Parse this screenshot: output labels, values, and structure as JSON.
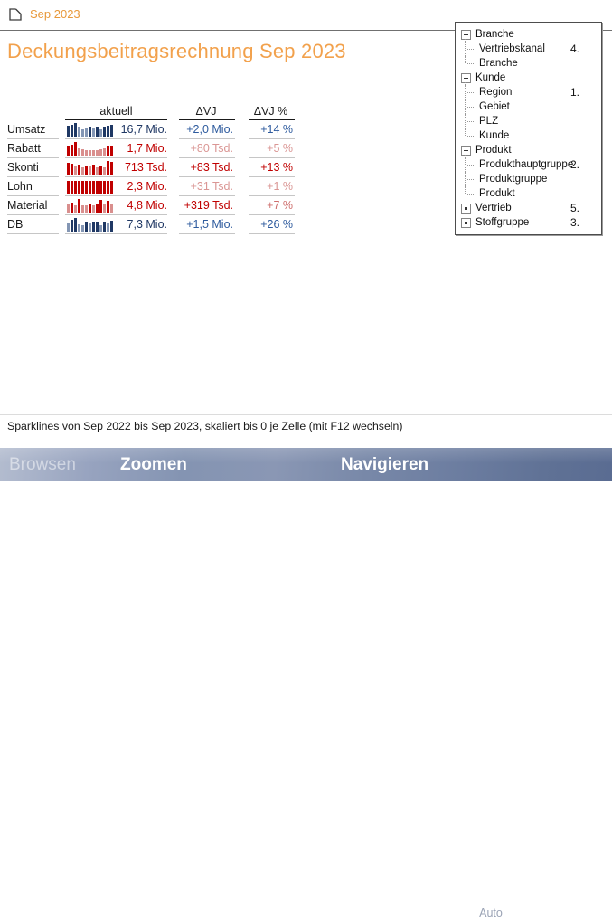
{
  "header": {
    "breadcrumb": "Sep 2023",
    "title": "Deckungsbeitragsrechnung Sep 2023"
  },
  "table": {
    "columns": [
      "aktuell",
      "ΔVJ",
      "ΔVJ %"
    ],
    "rows": [
      {
        "label": "Umsatz",
        "aktuell": "16,7 Mio.",
        "dvj": "+2,0 Mio.",
        "dvjp": "+14 %",
        "colors": {
          "aktuell": "#203864",
          "dvj": "#2E5B9E",
          "dvjp": "#2E5B9E"
        },
        "spark": {
          "dark": "#1F3864",
          "light": "#8496B4",
          "values": [
            0.8,
            0.87,
            1.0,
            0.7,
            0.5,
            0.65,
            0.75,
            0.68,
            0.75,
            0.55,
            0.7,
            0.8,
            0.87
          ],
          "tones": [
            "d",
            "d",
            "d",
            "l",
            "l",
            "l",
            "d",
            "l",
            "d",
            "l",
            "d",
            "d",
            "d"
          ]
        }
      },
      {
        "label": "Rabatt",
        "aktuell": "1,7 Mio.",
        "dvj": "+80 Tsd.",
        "dvjp": "+5 %",
        "colors": {
          "aktuell": "#C00000",
          "dvj": "#DA9694",
          "dvjp": "#DA9694"
        },
        "spark": {
          "dark": "#C00000",
          "light": "#D98F8E",
          "values": [
            0.7,
            0.82,
            1.0,
            0.55,
            0.45,
            0.42,
            0.42,
            0.42,
            0.42,
            0.45,
            0.5,
            0.75,
            0.7
          ],
          "tones": [
            "d",
            "d",
            "d",
            "l",
            "l",
            "l",
            "l",
            "l",
            "l",
            "l",
            "l",
            "d",
            "d"
          ]
        }
      },
      {
        "label": "Skonti",
        "aktuell": "713 Tsd.",
        "dvj": "+83 Tsd.",
        "dvjp": "+13 %",
        "colors": {
          "aktuell": "#C00000",
          "dvj": "#C00000",
          "dvjp": "#C00000"
        },
        "spark": {
          "dark": "#C00000",
          "light": "#D98F8E",
          "values": [
            0.85,
            0.78,
            0.6,
            0.74,
            0.55,
            0.68,
            0.6,
            0.73,
            0.55,
            0.68,
            0.5,
            1.0,
            0.93
          ],
          "tones": [
            "d",
            "d",
            "l",
            "d",
            "l",
            "d",
            "l",
            "d",
            "l",
            "d",
            "l",
            "d",
            "d"
          ]
        }
      },
      {
        "label": "Lohn",
        "aktuell": "2,3 Mio.",
        "dvj": "+31 Tsd.",
        "dvjp": "+1 %",
        "colors": {
          "aktuell": "#C00000",
          "dvj": "#DA9694",
          "dvjp": "#DA9694"
        },
        "spark": {
          "dark": "#C00000",
          "light": "#D98F8E",
          "values": [
            0.96,
            0.93,
            0.95,
            0.94,
            0.96,
            0.93,
            0.95,
            0.94,
            0.96,
            0.93,
            0.95,
            0.94,
            0.96
          ],
          "tones": [
            "d",
            "d",
            "d",
            "d",
            "d",
            "d",
            "d",
            "d",
            "d",
            "d",
            "d",
            "d",
            "d"
          ]
        }
      },
      {
        "label": "Material",
        "aktuell": "4,8 Mio.",
        "dvj": "+319 Tsd.",
        "dvjp": "+7 %",
        "colors": {
          "aktuell": "#C00000",
          "dvj": "#C00000",
          "dvjp": "#CE6E6C"
        },
        "spark": {
          "dark": "#C00000",
          "light": "#D98F8E",
          "values": [
            0.6,
            0.7,
            0.55,
            1.0,
            0.5,
            0.55,
            0.62,
            0.55,
            0.65,
            0.9,
            0.6,
            0.85,
            0.65
          ],
          "tones": [
            "l",
            "d",
            "l",
            "d",
            "l",
            "l",
            "d",
            "l",
            "d",
            "d",
            "l",
            "d",
            "l"
          ]
        }
      },
      {
        "label": "DB",
        "aktuell": "7,3 Mio.",
        "dvj": "+1,5 Mio.",
        "dvjp": "+26 %",
        "colors": {
          "aktuell": "#203864",
          "dvj": "#2E5B9E",
          "dvjp": "#2E5B9E"
        },
        "spark": {
          "dark": "#1F3864",
          "light": "#8496B4",
          "values": [
            0.65,
            0.85,
            1.0,
            0.55,
            0.45,
            0.7,
            0.6,
            0.75,
            0.7,
            0.45,
            0.75,
            0.6,
            0.82
          ],
          "tones": [
            "l",
            "d",
            "d",
            "l",
            "l",
            "d",
            "l",
            "d",
            "d",
            "l",
            "d",
            "l",
            "d"
          ]
        }
      }
    ]
  },
  "tree": {
    "items": [
      {
        "label": "Branche",
        "kind": "group",
        "state": "expanded"
      },
      {
        "label": "Vertriebskanal",
        "kind": "child",
        "number": "4."
      },
      {
        "label": "Branche",
        "kind": "child",
        "last": true
      },
      {
        "label": "Kunde",
        "kind": "group",
        "state": "expanded"
      },
      {
        "label": "Region",
        "kind": "child",
        "number": "1."
      },
      {
        "label": "Gebiet",
        "kind": "child"
      },
      {
        "label": "PLZ",
        "kind": "child"
      },
      {
        "label": "Kunde",
        "kind": "child",
        "last": true
      },
      {
        "label": "Produkt",
        "kind": "group",
        "state": "expanded"
      },
      {
        "label": "Produkthauptgruppe",
        "kind": "child",
        "number": "2."
      },
      {
        "label": "Produktgruppe",
        "kind": "child"
      },
      {
        "label": "Produkt",
        "kind": "child",
        "last": true
      },
      {
        "label": "Vertrieb",
        "kind": "group",
        "state": "collapsed",
        "number": "5."
      },
      {
        "label": "Stoffgruppe",
        "kind": "group",
        "state": "collapsed",
        "number": "3."
      }
    ]
  },
  "statusbar": {
    "text": "Sparklines von Sep 2022 bis Sep 2023, skaliert bis 0 je Zelle (mit F12 wechseln)"
  },
  "toolbar": {
    "browse": "Browsen",
    "zoom": "Zoomen",
    "navigate": "Navigieren",
    "auto": "Auto",
    "glyphs": {
      "minus": "−",
      "plus": "+",
      "chevron_left": "‹",
      "chevron_right": "›"
    }
  },
  "theme": {
    "accent_orange": "#F2A14C",
    "blue_dark": "#1F3864",
    "blue_light": "#8496B4",
    "red_dark": "#C00000",
    "red_light": "#D98F8E"
  }
}
